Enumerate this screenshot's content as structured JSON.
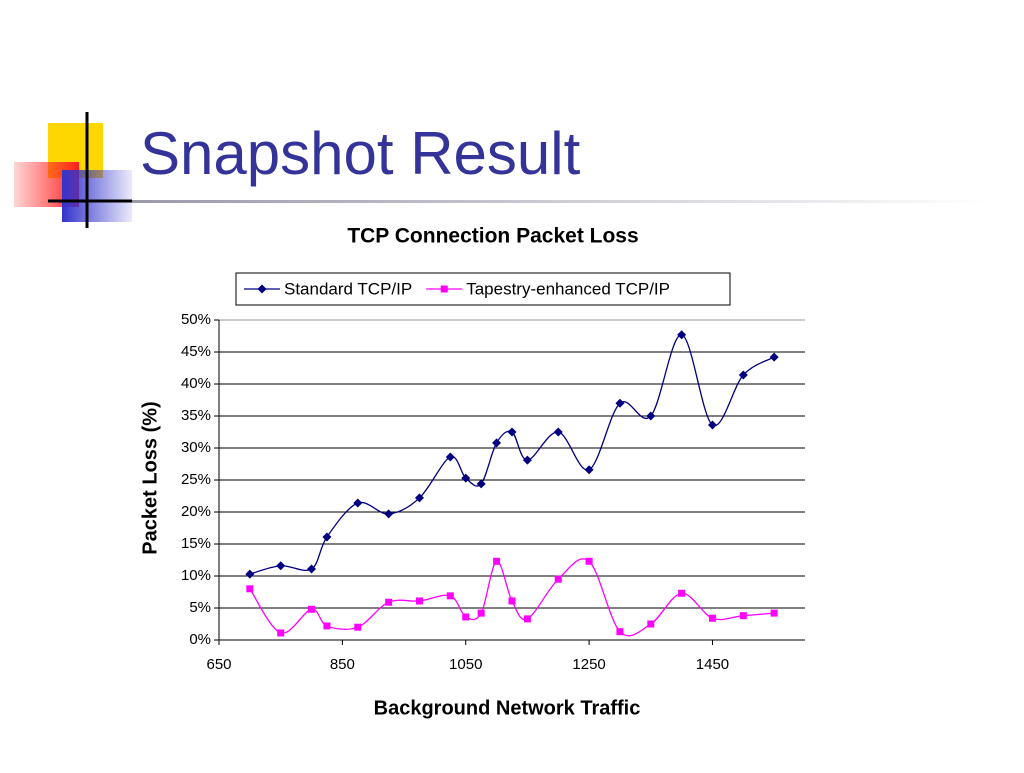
{
  "slide_title": "Snapshot Result",
  "chart_data": {
    "type": "line",
    "title": "TCP Connection Packet Loss",
    "x_label": "Background Network Traffic",
    "y_label": "Packet Loss (%)",
    "x": [
      700,
      750,
      800,
      825,
      875,
      925,
      975,
      1025,
      1050,
      1075,
      1100,
      1125,
      1150,
      1200,
      1250,
      1300,
      1350,
      1400,
      1450,
      1500,
      1550
    ],
    "series": [
      {
        "name": "Standard TCP/IP",
        "color": "#000080",
        "marker": "diamond",
        "values": [
          10.3,
          11.6,
          11.1,
          16.1,
          21.4,
          19.7,
          22.2,
          28.6,
          25.3,
          24.4,
          30.8,
          32.5,
          28.1,
          32.5,
          26.6,
          37.0,
          35.0,
          47.7,
          33.6,
          41.4,
          44.2
        ]
      },
      {
        "name": "Tapestry-enhanced TCP/IP",
        "color": "#ff00ff",
        "marker": "square",
        "values": [
          8.0,
          1.1,
          4.8,
          2.2,
          2.0,
          5.9,
          6.1,
          6.9,
          3.6,
          4.2,
          12.3,
          6.1,
          3.3,
          9.5,
          12.3,
          1.3,
          2.5,
          7.3,
          3.4,
          3.8,
          4.2
        ]
      }
    ],
    "xlim": [
      650,
      1600
    ],
    "xticks": [
      650,
      850,
      1050,
      1250,
      1450
    ],
    "ylim": [
      0,
      50
    ],
    "yticks": [
      {
        "value": 0,
        "label": "0%"
      },
      {
        "value": 5,
        "label": "5%"
      },
      {
        "value": 10,
        "label": "10%"
      },
      {
        "value": 15,
        "label": "15%"
      },
      {
        "value": 20,
        "label": "20%"
      },
      {
        "value": 25,
        "label": "25%"
      },
      {
        "value": 30,
        "label": "30%"
      },
      {
        "value": 35,
        "label": "35%"
      },
      {
        "value": 40,
        "label": "40%"
      },
      {
        "value": 45,
        "label": "45%"
      },
      {
        "value": 50,
        "label": "50%"
      }
    ],
    "grid": true,
    "legend": "top",
    "smooth": true
  }
}
